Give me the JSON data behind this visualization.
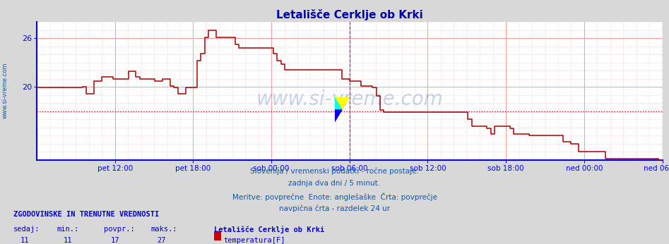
{
  "title": "Letališče Cerklje ob Krki",
  "title_color": "#0000aa",
  "bg_color": "#d8d8d8",
  "plot_bg_color": "#ffffff",
  "grid_color_major": "#ff9999",
  "grid_color_minor": "#ffdddd",
  "line_color": "#aa0000",
  "axis_color": "#0000ff",
  "watermark": "www.si-vreme.com",
  "watermark_color": "#1155aa",
  "subtitle_lines": [
    "Slovenija / vremenski podatki - ročne postaje.",
    "zadnja dva dni / 5 minut.",
    "Meritve: povprečne  Enote: anglešaške  Črta: povprečje",
    "navpična črta - razdelek 24 ur"
  ],
  "footer_header": "ZGODOVINSKE IN TRENUTNE VREDNOSTI",
  "footer_labels": [
    "sedaj:",
    "min.:",
    "povpr.:",
    "maks.:"
  ],
  "footer_values": [
    11,
    11,
    17,
    27
  ],
  "footer_station": "Letališče Cerklje ob Krki",
  "footer_series": "temperatura[F]",
  "footer_series_color": "#cc0000",
  "xlabel_ticks": [
    "pet 12:00",
    "pet 18:00",
    "sob 00:00",
    "sob 06:00",
    "sob 12:00",
    "sob 18:00",
    "ned 00:00",
    "ned 06:00"
  ],
  "ylim_min": 11,
  "ylim_max": 28,
  "yticks": [
    20,
    26
  ],
  "avg_line_y": 17,
  "avg_line_color": "#cc0000",
  "vline_color": "#cc00cc",
  "sidebar_text": "www.si-vreme.com",
  "sidebar_color": "#1155aa",
  "temp_data": [
    19.9,
    19.9,
    19.9,
    19.9,
    19.9,
    19.9,
    19.9,
    19.9,
    19.9,
    19.9,
    19.9,
    19.9,
    20.0,
    19.1,
    19.1,
    20.7,
    20.7,
    21.2,
    21.2,
    21.2,
    21.0,
    21.0,
    21.0,
    21.0,
    21.9,
    21.9,
    21.2,
    21.0,
    21.0,
    21.0,
    21.0,
    20.7,
    20.7,
    21.0,
    21.0,
    20.1,
    19.9,
    19.1,
    19.1,
    19.9,
    19.9,
    19.9,
    23.2,
    24.1,
    26.1,
    27.0,
    27.0,
    26.1,
    26.1,
    26.1,
    26.1,
    26.1,
    25.2,
    24.8,
    24.8,
    24.8,
    24.8,
    24.8,
    24.8,
    24.8,
    24.8,
    24.8,
    24.1,
    23.2,
    22.8,
    22.1,
    22.1,
    22.1,
    22.1,
    22.1,
    22.1,
    22.1,
    22.1,
    22.1,
    22.1,
    22.1,
    22.1,
    22.1,
    22.1,
    22.1,
    21.0,
    21.0,
    20.7,
    20.7,
    20.7,
    20.1,
    20.1,
    20.1,
    19.9,
    18.9,
    17.1,
    16.9,
    16.9,
    16.9,
    16.9,
    16.9,
    16.9,
    16.9,
    16.9,
    16.9,
    16.9,
    16.9,
    16.9,
    16.9,
    16.9,
    16.9,
    16.9,
    16.9,
    16.9,
    16.9,
    16.9,
    16.9,
    16.9,
    16.0,
    15.1,
    15.1,
    15.1,
    15.1,
    14.9,
    14.2,
    15.1,
    15.1,
    15.1,
    15.1,
    14.9,
    14.2,
    14.2,
    14.2,
    14.2,
    14.0,
    14.0,
    14.0,
    14.0,
    14.0,
    14.0,
    14.0,
    14.0,
    14.0,
    13.2,
    13.2,
    13.0,
    13.0,
    12.0,
    12.0,
    12.0,
    12.0,
    12.0,
    12.0,
    12.0,
    11.1,
    11.1,
    11.1,
    11.1,
    11.1,
    11.1,
    11.1,
    11.1,
    11.1,
    11.1,
    11.1,
    11.1,
    11.1,
    11.1,
    11.0,
    11.0
  ]
}
